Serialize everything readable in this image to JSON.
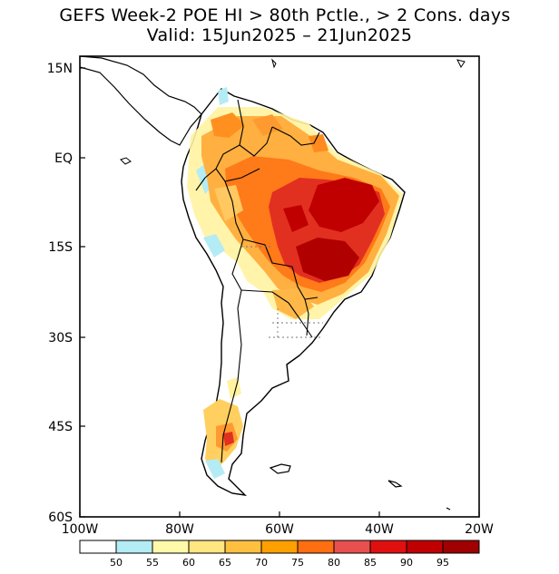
{
  "title": "GEFS Week-2 POE HI > 80th Pctle., > 2 Cons. days",
  "subtitle": "Valid: 15Jun2025 – 21Jun2025",
  "map": {
    "y_ticks": [
      "15N",
      "EQ",
      "15S",
      "30S",
      "45S",
      "60S"
    ],
    "x_ticks": [
      "100W",
      "80W",
      "60W",
      "40W",
      "20W"
    ],
    "lon_range": [
      -100,
      -20
    ],
    "lat_range": [
      -60,
      15
    ]
  },
  "colorbar": {
    "labels": [
      "50",
      "55",
      "60",
      "65",
      "70",
      "75",
      "80",
      "85",
      "90",
      "95"
    ],
    "colors": [
      "#ffffff",
      "#b4ecf5",
      "#fffaaa",
      "#ffe680",
      "#ffc040",
      "#ffa000",
      "#ff6e10",
      "#e85050",
      "#e01010",
      "#c00000",
      "#a00000"
    ]
  }
}
